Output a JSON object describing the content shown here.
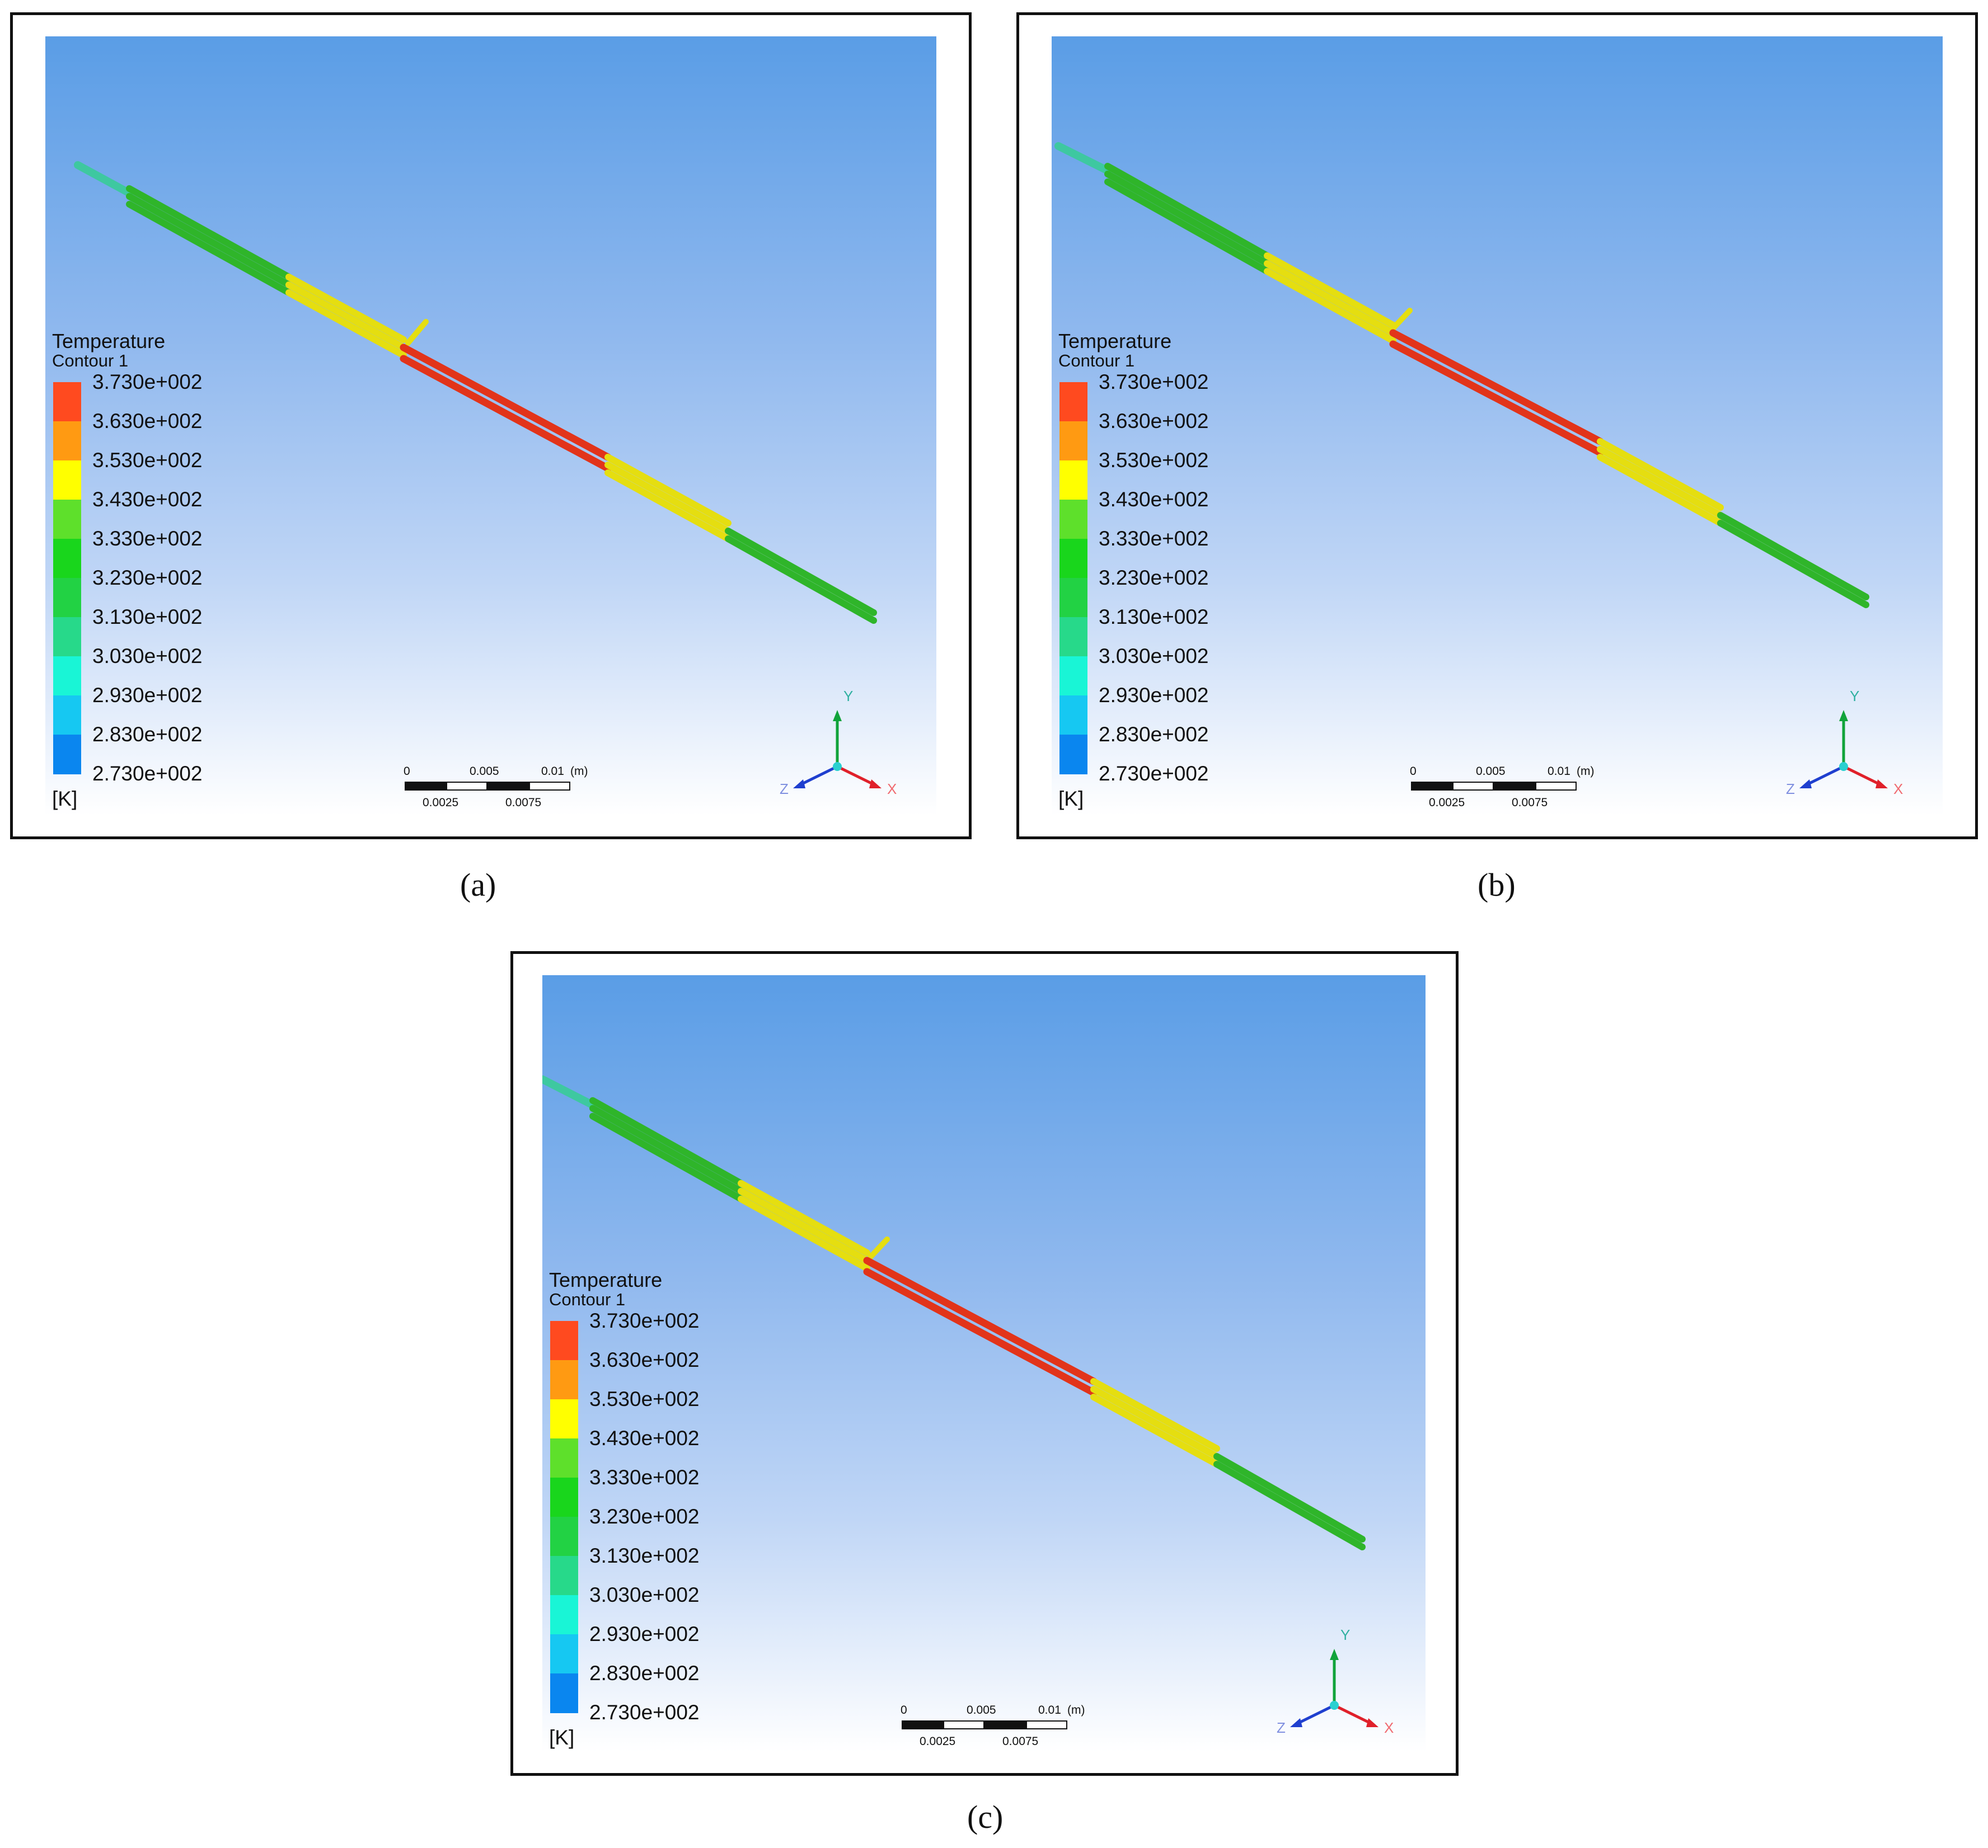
{
  "panels": [
    {
      "id": "a",
      "caption": "(a)"
    },
    {
      "id": "b",
      "caption": "(b)"
    },
    {
      "id": "c",
      "caption": "(c)"
    }
  ],
  "legend": {
    "title": "Temperature",
    "subtitle": "Contour 1",
    "unit": "[K]",
    "ticks": [
      "3.730e+002",
      "3.630e+002",
      "3.530e+002",
      "3.430e+002",
      "3.330e+002",
      "3.230e+002",
      "3.130e+002",
      "3.030e+002",
      "2.930e+002",
      "2.830e+002",
      "2.730e+002"
    ],
    "band_colors": [
      "#ff4a1f",
      "#ff9a12",
      "#ffff00",
      "#5ee02b",
      "#19d61c",
      "#22d244",
      "#27d98a",
      "#19f5d6",
      "#16c8f2",
      "#0a86ef",
      "#0a3fef"
    ]
  },
  "scale_bar": {
    "top_labels": [
      "0",
      "0.005",
      "0.01",
      "(m)"
    ],
    "bottom_labels": [
      "0.0025",
      "0.0075"
    ]
  },
  "axis_triad": {
    "x": "X",
    "y": "Y",
    "z": "Z"
  },
  "colors": {
    "x_axis": "#e0202a",
    "y_axis": "#11a33a",
    "z_axis": "#1f3fcf",
    "hot_section": "#e8341c",
    "warm_section": "#e8e40e",
    "cool_section": "#36c42a"
  }
}
